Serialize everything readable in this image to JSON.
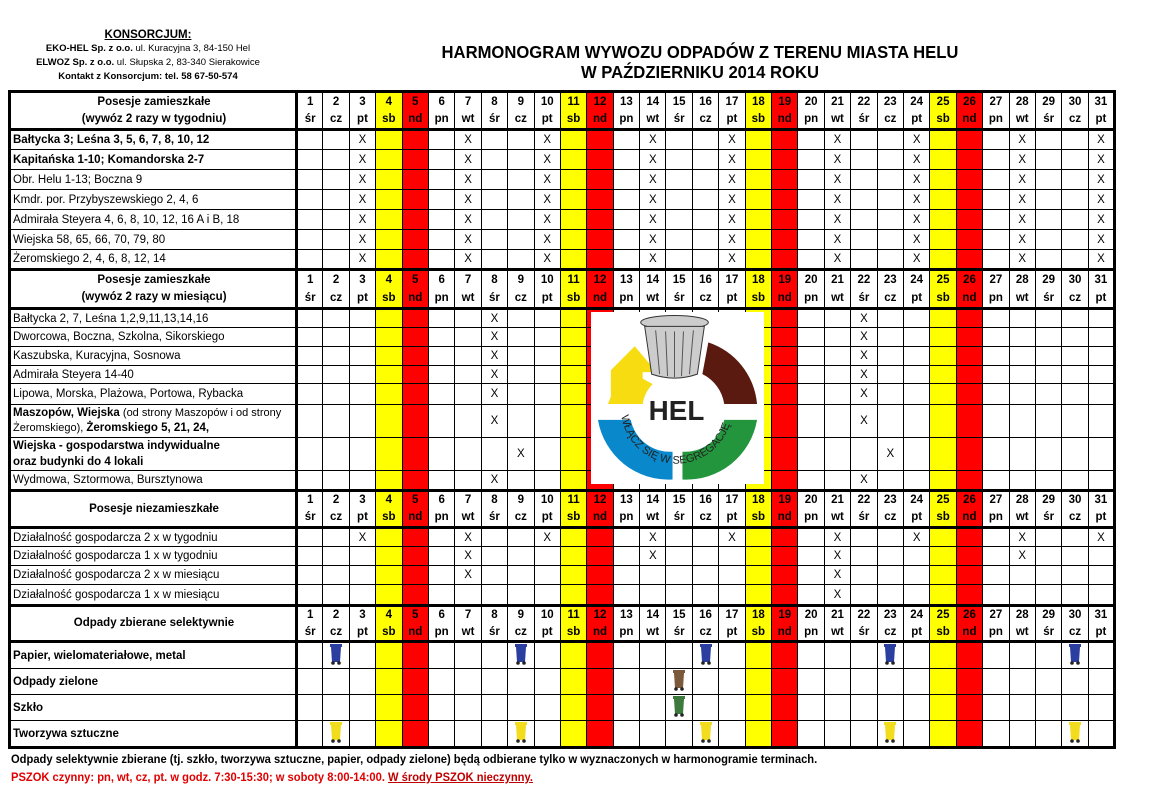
{
  "consortium": {
    "title": "KONSORCJUM:",
    "line1_bold": "EKO-HEL Sp. z o.o.",
    "line1": " ul. Kuracyjna 3,  84-150 Hel",
    "line2_bold": "ELWOZ Sp. z o.o.",
    "line2": " ul. Słupska 2,  83-340 Sierakowice",
    "contact": "Kontakt z Konsorcjum: tel. 58 67-50-574"
  },
  "title": {
    "line1": "HARMONOGRAM WYWOZU ODPADÓW Z TERENU MIASTA HELU",
    "line2": "W PAŹDZIERNIKU 2014 ROKU"
  },
  "colors": {
    "saturday": "#ffff00",
    "sunday": "#ff0000",
    "paper_bin": "#2a3fa0",
    "green_bin": "#7a5a3a",
    "glass_bin": "#3d7a3d",
    "plastic_bin": "#f2dc1e"
  },
  "days": [
    {
      "d": "1",
      "w": "śr"
    },
    {
      "d": "2",
      "w": "cz"
    },
    {
      "d": "3",
      "w": "pt"
    },
    {
      "d": "4",
      "w": "sb"
    },
    {
      "d": "5",
      "w": "nd"
    },
    {
      "d": "6",
      "w": "pn"
    },
    {
      "d": "7",
      "w": "wt"
    },
    {
      "d": "8",
      "w": "śr"
    },
    {
      "d": "9",
      "w": "cz"
    },
    {
      "d": "10",
      "w": "pt"
    },
    {
      "d": "11",
      "w": "sb"
    },
    {
      "d": "12",
      "w": "nd"
    },
    {
      "d": "13",
      "w": "pn"
    },
    {
      "d": "14",
      "w": "wt"
    },
    {
      "d": "15",
      "w": "śr"
    },
    {
      "d": "16",
      "w": "cz"
    },
    {
      "d": "17",
      "w": "pt"
    },
    {
      "d": "18",
      "w": "sb"
    },
    {
      "d": "19",
      "w": "nd"
    },
    {
      "d": "20",
      "w": "pn"
    },
    {
      "d": "21",
      "w": "wt"
    },
    {
      "d": "22",
      "w": "śr"
    },
    {
      "d": "23",
      "w": "cz"
    },
    {
      "d": "24",
      "w": "pt"
    },
    {
      "d": "25",
      "w": "sb"
    },
    {
      "d": "26",
      "w": "nd"
    },
    {
      "d": "27",
      "w": "pn"
    },
    {
      "d": "28",
      "w": "wt"
    },
    {
      "d": "29",
      "w": "śr"
    },
    {
      "d": "30",
      "w": "cz"
    },
    {
      "d": "31",
      "w": "pt"
    }
  ],
  "mark": "X",
  "sections": [
    {
      "header": [
        "Posesje zamieszkałe",
        "(wywóz 2 razy w tygodniu)"
      ],
      "rows": [
        {
          "label": "Bałtycka 3; Leśna 3, 5, 6, 7, 8, 10, 12",
          "bold": true,
          "days": [
            3,
            7,
            10,
            14,
            17,
            21,
            24,
            28,
            31
          ]
        },
        {
          "label": "Kapitańska 1-10;  Komandorska 2-7",
          "bold": true,
          "days": [
            3,
            7,
            10,
            14,
            17,
            21,
            24,
            28,
            31
          ]
        },
        {
          "label": "Obr. Helu 1-13;  Boczna 9",
          "days": [
            3,
            7,
            10,
            14,
            17,
            21,
            24,
            28,
            31
          ]
        },
        {
          "label": "Kmdr. por. Przybyszewskiego 2, 4, 6",
          "days": [
            3,
            7,
            10,
            14,
            17,
            21,
            24,
            28,
            31
          ]
        },
        {
          "label": "Admirała Steyera 4, 6, 8, 10, 12, 16 A i B, 18",
          "days": [
            3,
            7,
            10,
            14,
            17,
            21,
            24,
            28,
            31
          ]
        },
        {
          "label": "Wiejska 58, 65, 66, 70, 79, 80",
          "days": [
            3,
            7,
            10,
            14,
            17,
            21,
            24,
            28,
            31
          ]
        },
        {
          "label": "Żeromskiego 2, 4, 6, 8, 12, 14",
          "days": [
            3,
            7,
            10,
            14,
            17,
            21,
            24,
            28,
            31
          ]
        }
      ]
    },
    {
      "header": [
        "Posesje zamieszkałe",
        "(wywóz 2 razy w miesiącu)"
      ],
      "logo": {
        "text": "HEL",
        "slogan": "WŁĄCZ SIĘ W SEGREGACJĘ"
      },
      "rows": [
        {
          "label": "Bałtycka 2, 7, Leśna 1,2,9,11,13,14,16",
          "days": [
            8,
            22
          ]
        },
        {
          "label": "Dworcowa, Boczna, Szkolna,  Sikorskiego",
          "days": [
            8,
            22
          ]
        },
        {
          "label": "Kaszubska, Kuracyjna, Sosnowa",
          "days": [
            8,
            22
          ]
        },
        {
          "label": "Admirała Steyera 14-40",
          "days": [
            8,
            22
          ]
        },
        {
          "label": "Lipowa, Morska, Plażowa, Portowa, Rybacka",
          "days": [
            8,
            22
          ]
        },
        {
          "label": "Maszopów, Wiejska",
          "label_note": " (od strony Maszopów i od strony Żeromskiego), ",
          "label_end": "Żeromskiego 5, 21, 24,",
          "days": [
            8,
            22
          ]
        },
        {
          "label": "Wiejska - gospodarstwa indywidualne",
          "label_line2": "oraz budynki do 4 lokali",
          "days": [
            9,
            23
          ]
        },
        {
          "label": "Wydmowa, Sztormowa, Bursztynowa",
          "days": [
            8,
            22
          ]
        }
      ]
    },
    {
      "header": [
        "Posesje niezamieszkałe"
      ],
      "rows": [
        {
          "label": "Działalność gospodarcza 2 x w tygodniu",
          "days": [
            3,
            7,
            10,
            14,
            17,
            21,
            24,
            28,
            31
          ]
        },
        {
          "label": "Działalność gospodarcza 1 x w tygodniu",
          "days": [
            7,
            14,
            21,
            28
          ]
        },
        {
          "label": "Działalność gospodarcza 2 x w miesiącu",
          "days": [
            7,
            21
          ]
        },
        {
          "label": "Działalność gospodarcza 1 x w miesiącu",
          "days": [
            21
          ]
        }
      ]
    },
    {
      "header": [
        "Odpady zbierane selektywnie"
      ],
      "rows": [
        {
          "label": "Papier, wielomateriałowe, metal",
          "bold": true,
          "bin": "paper_bin",
          "days": [
            2,
            9,
            16,
            23,
            30
          ]
        },
        {
          "label": "Odpady zielone",
          "bold": true,
          "bin": "green_bin",
          "days": [
            15
          ]
        },
        {
          "label": "Szkło",
          "bold": true,
          "bin": "glass_bin",
          "days": [
            15
          ]
        },
        {
          "label": "Tworzywa sztuczne",
          "bold": true,
          "bin": "plastic_bin",
          "days": [
            2,
            9,
            16,
            23,
            30
          ]
        }
      ]
    }
  ],
  "notes": {
    "line1": "Odpady selektywnie zbierane (tj. szkło, tworzywa sztuczne, papier, odpady zielone) będą odbierane tylko w wyznaczonych w harmonogramie terminach.",
    "line2": "PSZOK czynny: pn, wt, cz, pt. w godz. 7:30-15:30; w soboty 8:00-14:00. ",
    "line2_underlined": "W środy PSZOK nieczynny."
  }
}
